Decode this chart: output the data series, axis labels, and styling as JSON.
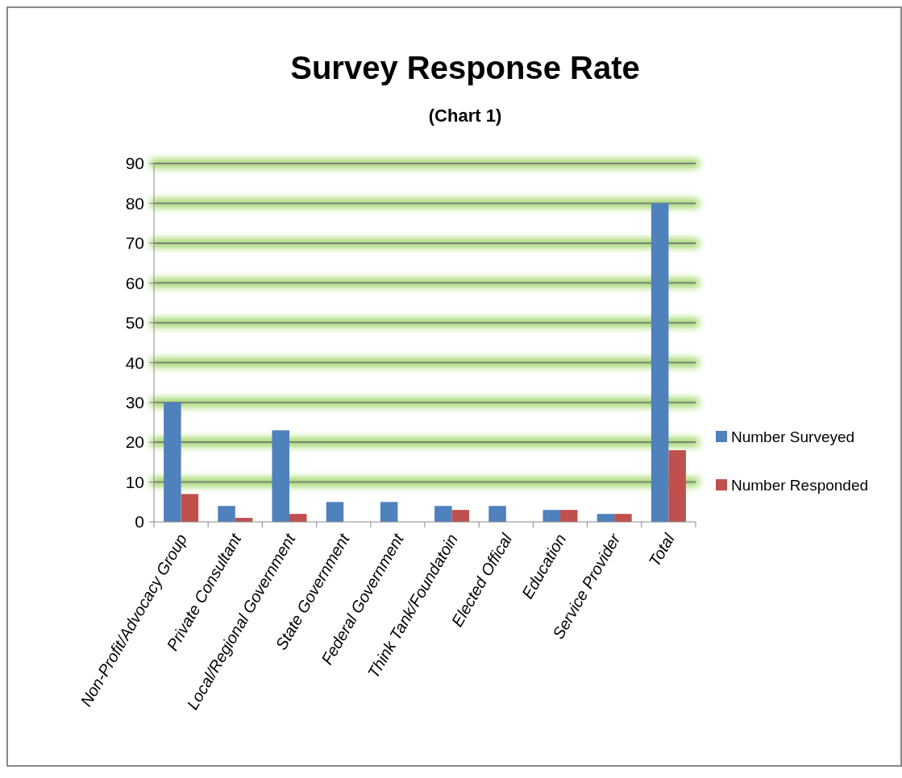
{
  "chart_data": {
    "type": "bar",
    "title": "Survey Response Rate",
    "subtitle": "(Chart 1)",
    "categories": [
      "Non-Profit/Advocacy Group",
      "Private Consultant",
      "Local/Regional Government",
      "State Government",
      "Federal Government",
      "Think Tank/Foundatoin",
      "Elected Offical",
      "Education",
      "Service Provider",
      "Total"
    ],
    "series": [
      {
        "name": "Number Surveyed",
        "color": "#4f81bd",
        "values": [
          30,
          4,
          23,
          5,
          5,
          4,
          4,
          3,
          2,
          80
        ]
      },
      {
        "name": "Number Responded",
        "color": "#c0504d",
        "values": [
          7,
          1,
          2,
          0,
          0,
          3,
          0,
          3,
          2,
          18
        ]
      }
    ],
    "ylim": [
      0,
      90
    ],
    "yticks": [
      0,
      10,
      20,
      30,
      40,
      50,
      60,
      70,
      80,
      90
    ],
    "grid": "y",
    "legend": "right"
  }
}
